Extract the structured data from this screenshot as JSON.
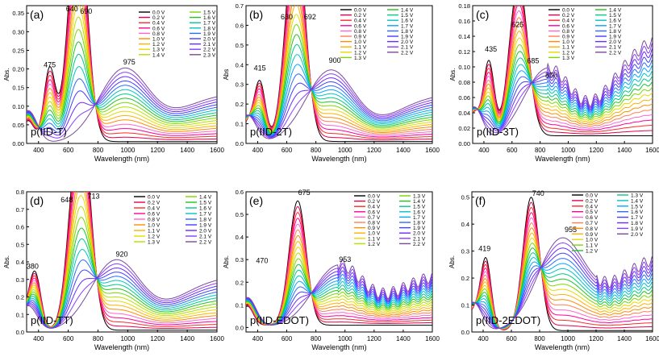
{
  "figure": {
    "caption_hidden": ""
  },
  "chart_data": [
    {
      "type": "line",
      "panel": "(a)",
      "label": "p(IID-T)",
      "xlabel": "Wavelength (nm)",
      "ylabel": "Abs.",
      "xlim": [
        320,
        1600
      ],
      "ylim": [
        0.0,
        0.37
      ],
      "xticks": [
        400,
        600,
        800,
        1000,
        1200,
        1400,
        1600
      ],
      "yticks": [
        0.0,
        0.05,
        0.1,
        0.15,
        0.2,
        0.25,
        0.3,
        0.35
      ],
      "ytick_labels": [
        "0.00",
        "0.05",
        "0.10",
        "0.15",
        "0.20",
        "0.25",
        "0.30",
        "0.35"
      ],
      "legend": [
        "0.0 V",
        "0.2 V",
        "0.4 V",
        "0.6 V",
        "0.8 V",
        "1.0 V",
        "1.2 V",
        "1.3 V",
        "1.4 V",
        "1.5 V",
        "1.6 V",
        "1.7 V",
        "1.8 V",
        "1.9 V",
        "2.0 V",
        "2.1 V",
        "2.2 V",
        "2.3 V"
      ],
      "annotations": [
        {
          "text": "475",
          "x": 475,
          "y": 0.205
        },
        {
          "text": "640",
          "x": 625,
          "y": 0.355
        },
        {
          "text": "690",
          "x": 720,
          "y": 0.348
        },
        {
          "text": "975",
          "x": 1010,
          "y": 0.212
        }
      ],
      "neutral_peaks": [
        {
          "x": 475,
          "y": 0.2
        },
        {
          "x": 640,
          "y": 0.33
        },
        {
          "x": 690,
          "y": 0.34
        }
      ],
      "oxidized_peak": {
        "x": 975,
        "y": 0.195
      },
      "long_tail_end": 0.14,
      "cutoff_edge": 760,
      "baseline": 0.005,
      "shoulder": 0.16,
      "oscillation_from": 1600
    },
    {
      "type": "line",
      "panel": "(b)",
      "label": "p(IID-2T)",
      "xlabel": "Wavelength (nm)",
      "ylabel": "Abs",
      "xlim": [
        320,
        1600
      ],
      "ylim": [
        0.0,
        0.7
      ],
      "xticks": [
        400,
        600,
        800,
        1000,
        1200,
        1400,
        1600
      ],
      "yticks": [
        0.0,
        0.1,
        0.2,
        0.3,
        0.4,
        0.5,
        0.6,
        0.7
      ],
      "ytick_labels": [
        "0.0",
        "0.1",
        "0.2",
        "0.3",
        "0.4",
        "0.5",
        "0.6",
        "0.7"
      ],
      "legend": [
        "0.0 V",
        "0.2 V",
        "0.4 V",
        "0.6 V",
        "0.8 V",
        "0.9 V",
        "1.0 V",
        "1.1 V",
        "1.2 V",
        "1.3 V",
        "1.4 V",
        "1.5 V",
        "1.6 V",
        "1.7 V",
        "1.8 V",
        "1.9 V",
        "2.0 V",
        "2.1 V",
        "2.2 V"
      ],
      "annotations": [
        {
          "text": "415",
          "x": 415,
          "y": 0.37
        },
        {
          "text": "630",
          "x": 600,
          "y": 0.63
        },
        {
          "text": "692",
          "x": 760,
          "y": 0.63
        },
        {
          "text": "900",
          "x": 930,
          "y": 0.41
        }
      ],
      "neutral_peaks": [
        {
          "x": 415,
          "y": 0.31
        },
        {
          "x": 630,
          "y": 0.62
        },
        {
          "x": 692,
          "y": 0.62
        }
      ],
      "oxidized_peak": {
        "x": 900,
        "y": 0.365
      },
      "long_tail_end": 0.26,
      "cutoff_edge": 740,
      "baseline": 0.01,
      "shoulder": 0.26,
      "oscillation_from": 1600
    },
    {
      "type": "line",
      "panel": "(c)",
      "label": "p(IID-3T)",
      "xlabel": "Wavelength (nm)",
      "ylabel": "Abs.",
      "xlim": [
        320,
        1600
      ],
      "ylim": [
        0.0,
        0.18
      ],
      "xticks": [
        400,
        600,
        800,
        1000,
        1200,
        1400,
        1600
      ],
      "yticks": [
        0.0,
        0.02,
        0.04,
        0.06,
        0.08,
        0.1,
        0.12,
        0.14,
        0.16,
        0.18
      ],
      "ytick_labels": [
        "0.00",
        "0.02",
        "0.04",
        "0.06",
        "0.08",
        "0.10",
        "0.12",
        "0.14",
        "0.16",
        "0.18"
      ],
      "legend": [
        "0.0 V",
        "0.2 V",
        "0.4 V",
        "0.6 V",
        "0.8 V",
        "0.9 V",
        "1.0 V",
        "1.1 V",
        "1.2 V",
        "1.3 V",
        "1.4 V",
        "1.5 V",
        "1.6 V",
        "1.7 V",
        "1.8 V",
        "1.9 V",
        "2.0 V",
        "2.1 V",
        "2.2 V"
      ],
      "annotations": [
        {
          "text": "435",
          "x": 450,
          "y": 0.12
        },
        {
          "text": "625",
          "x": 640,
          "y": 0.152
        },
        {
          "text": "685",
          "x": 750,
          "y": 0.105
        },
        {
          "text": "850",
          "x": 880,
          "y": 0.086
        }
      ],
      "neutral_peaks": [
        {
          "x": 435,
          "y": 0.107
        },
        {
          "x": 625,
          "y": 0.146
        },
        {
          "x": 685,
          "y": 0.1
        }
      ],
      "oxidized_peak": {
        "x": 850,
        "y": 0.095
      },
      "long_tail_end": 0.15,
      "cutoff_edge": 730,
      "baseline": 0.01,
      "shoulder": 0.085,
      "oscillation_from": 850
    },
    {
      "type": "line",
      "panel": "(d)",
      "label": "p(IID-TT)",
      "xlabel": "Wavelength (nm)",
      "ylabel": "Abs.",
      "xlim": [
        320,
        1600
      ],
      "ylim": [
        0.0,
        0.8
      ],
      "xticks": [
        400,
        600,
        800,
        1000,
        1200,
        1400,
        1600
      ],
      "yticks": [
        0.0,
        0.1,
        0.2,
        0.3,
        0.4,
        0.5,
        0.6,
        0.7,
        0.8
      ],
      "ytick_labels": [
        "0.0",
        "0.1",
        "0.2",
        "0.3",
        "0.4",
        "0.5",
        "0.6",
        "0.7",
        "0.8"
      ],
      "legend": [
        "0.0 V",
        "0.2 V",
        "0.4 V",
        "0.6 V",
        "0.8 V",
        "1.0 V",
        "1.1 V",
        "1.2 V",
        "1.3 V",
        "1.4 V",
        "1.5 V",
        "1.6 V",
        "1.7 V",
        "1.8 V",
        "1.9 V",
        "2.0 V",
        "2.1 V",
        "2.2 V"
      ],
      "annotations": [
        {
          "text": "380",
          "x": 360,
          "y": 0.36
        },
        {
          "text": "648",
          "x": 590,
          "y": 0.74
        },
        {
          "text": "713",
          "x": 770,
          "y": 0.76
        },
        {
          "text": "920",
          "x": 960,
          "y": 0.43
        }
      ],
      "neutral_peaks": [
        {
          "x": 380,
          "y": 0.3
        },
        {
          "x": 648,
          "y": 0.7
        },
        {
          "x": 713,
          "y": 0.73
        }
      ],
      "oxidized_peak": {
        "x": 920,
        "y": 0.4
      },
      "long_tail_end": 0.33,
      "cutoff_edge": 790,
      "baseline": 0.01,
      "shoulder": 0.27,
      "oscillation_from": 1600
    },
    {
      "type": "line",
      "panel": "(e)",
      "label": "p(IID-EDOT)",
      "xlabel": "Wavelength (nm)",
      "ylabel": "Abs.",
      "xlim": [
        320,
        1600
      ],
      "ylim": [
        -0.02,
        0.6
      ],
      "xticks": [
        400,
        600,
        800,
        1000,
        1200,
        1400,
        1600
      ],
      "yticks": [
        0.0,
        0.1,
        0.2,
        0.3,
        0.4,
        0.5,
        0.6
      ],
      "ytick_labels": [
        "0.0",
        "0.1",
        "0.2",
        "0.3",
        "0.4",
        "0.5",
        "0.6"
      ],
      "legend": [
        "0.0 V",
        "0.2 V",
        "0.4 V",
        "0.6 V",
        "0.7 V",
        "0.8 V",
        "0.9 V",
        "1.0 V",
        "1.1 V",
        "1.2 V",
        "1.3 V",
        "1.4 V",
        "1.5 V",
        "1.6 V",
        "1.7 V",
        "1.8 V",
        "1.9 V",
        "2.0 V",
        "2.1 V",
        "2.2 V"
      ],
      "annotations": [
        {
          "text": "675",
          "x": 720,
          "y": 0.585
        },
        {
          "text": "470",
          "x": 430,
          "y": 0.285
        },
        {
          "text": "953",
          "x": 1000,
          "y": 0.29
        }
      ],
      "neutral_peaks": [
        {
          "x": 675,
          "y": 0.56
        }
      ],
      "oxidized_peak": {
        "x": 953,
        "y": 0.265
      },
      "long_tail_end": 0.25,
      "cutoff_edge": 800,
      "baseline": 0.01,
      "shoulder": 0.24,
      "oscillation_from": 950
    },
    {
      "type": "line",
      "panel": "(f)",
      "label": "p(IID-2EDOT)",
      "xlabel": "Wavelength (nm)",
      "ylabel": "Abs.",
      "xlim": [
        320,
        1600
      ],
      "ylim": [
        0.0,
        0.52
      ],
      "xticks": [
        400,
        600,
        800,
        1000,
        1200,
        1400,
        1600
      ],
      "yticks": [
        0.0,
        0.1,
        0.2,
        0.3,
        0.4,
        0.5
      ],
      "ytick_labels": [
        "0.0",
        "0.1",
        "0.2",
        "0.3",
        "0.4",
        "0.5"
      ],
      "legend": [
        "0.0 V",
        "0.2 V",
        "0.4 V",
        "0.5 V",
        "0.6 V",
        "0.7 V",
        "0.8 V",
        "0.9 V",
        "1.0 V",
        "1.1 V",
        "1.2 V",
        "1.3 V",
        "1.4 V",
        "1.5 V",
        "1.6 V",
        "1.7 V",
        "1.8 V",
        "1.9 V",
        "2.0 V"
      ],
      "annotations": [
        {
          "text": "740",
          "x": 790,
          "y": 0.505
        },
        {
          "text": "419",
          "x": 410,
          "y": 0.3
        },
        {
          "text": "955",
          "x": 1020,
          "y": 0.37
        }
      ],
      "neutral_peaks": [
        {
          "x": 419,
          "y": 0.27
        },
        {
          "x": 740,
          "y": 0.5
        }
      ],
      "oxidized_peak": {
        "x": 955,
        "y": 0.335
      },
      "long_tail_end": 0.3,
      "cutoff_edge": 860,
      "baseline": 0.005,
      "shoulder": 0.2,
      "oscillation_from": 1200
    }
  ]
}
